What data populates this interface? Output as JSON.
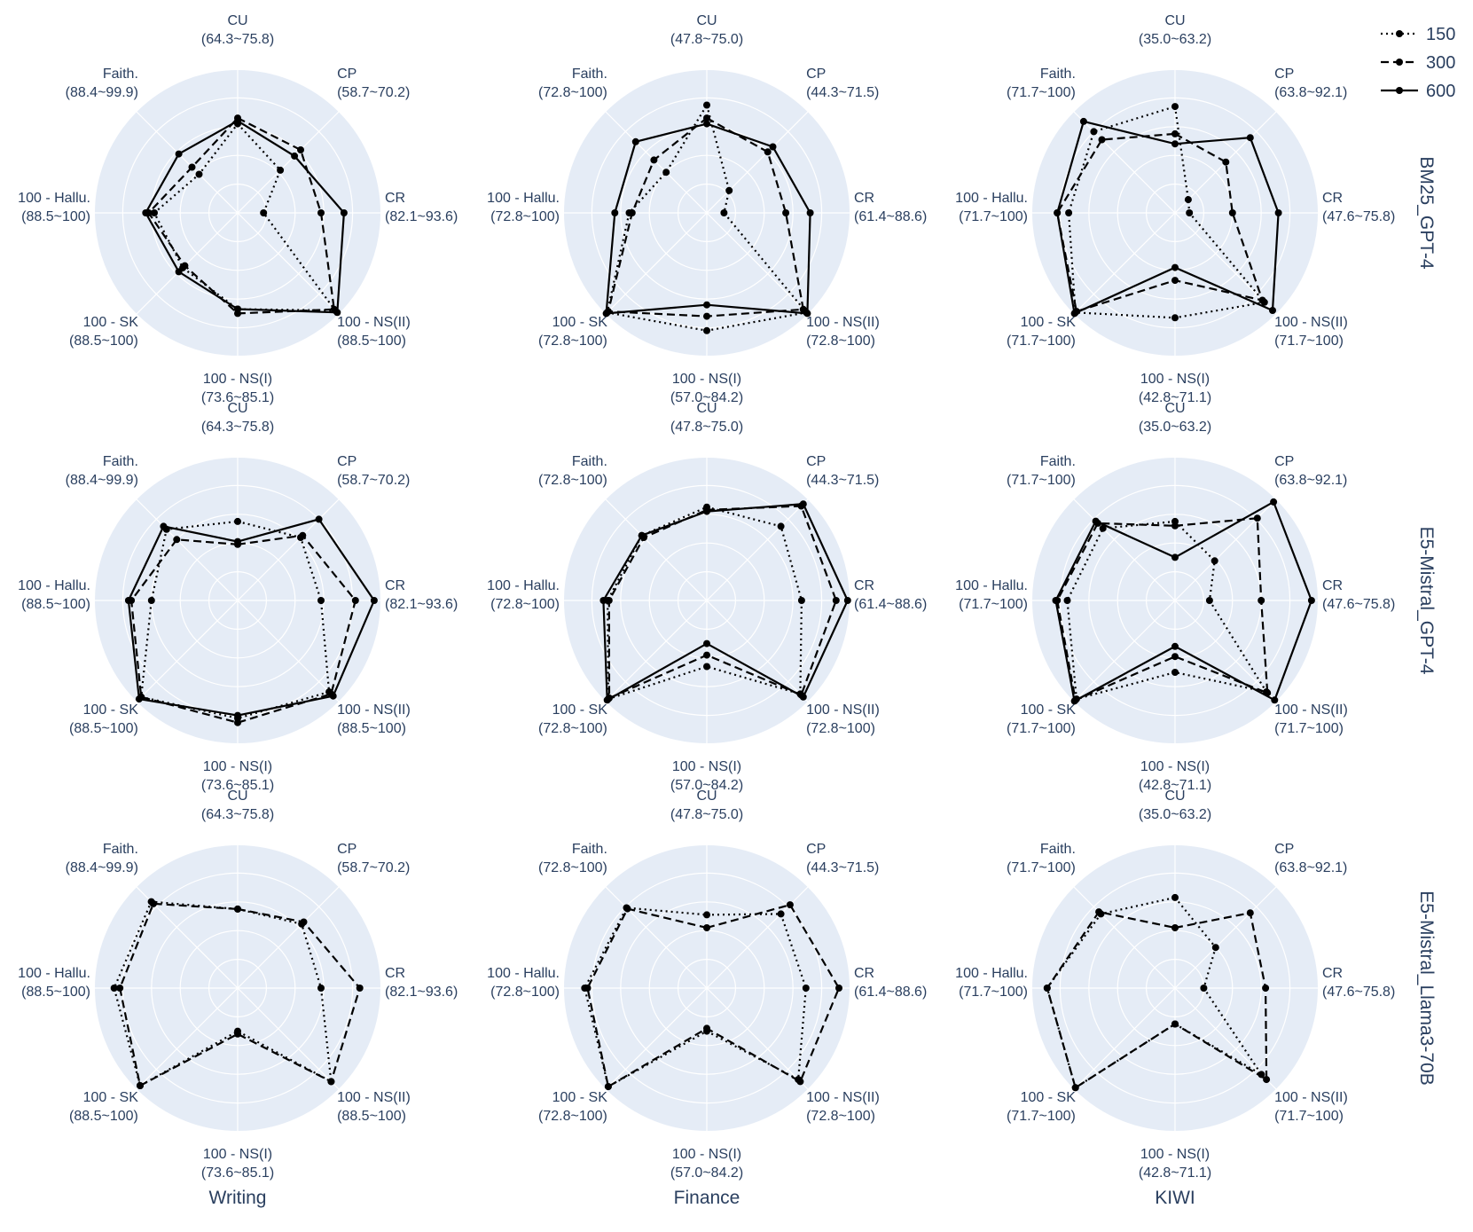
{
  "chart_data": {
    "type": "radar",
    "axes": [
      "CU",
      "CP",
      "CR",
      "100 - NS(II)",
      "100 - NS(I)",
      "100 - SK",
      "100 - Hallu.",
      "Faith."
    ],
    "columns": [
      {
        "title": "Writing",
        "ranges": [
          "(64.3~75.8)",
          "(58.7~70.2)",
          "(82.1~93.6)",
          "(88.5~100)",
          "(73.6~85.1)",
          "(88.5~100)",
          "(88.5~100)",
          "(88.4~99.9)"
        ]
      },
      {
        "title": "Finance",
        "ranges": [
          "(47.8~75.0)",
          "(44.3~71.5)",
          "(61.4~88.6)",
          "(72.8~100)",
          "(57.0~84.2)",
          "(72.8~100)",
          "(72.8~100)",
          "(72.8~100)"
        ]
      },
      {
        "title": "KIWI",
        "ranges": [
          "(35.0~63.2)",
          "(63.8~92.1)",
          "(47.6~75.8)",
          "(71.7~100)",
          "(42.8~71.1)",
          "(71.7~100)",
          "(71.7~100)",
          "(71.7~100)"
        ]
      }
    ],
    "rows": [
      "BM25_GPT-4",
      "E5-Mistral_GPT-4",
      "E5-Mistral_Llama3-70B"
    ],
    "legend": [
      {
        "name": "150",
        "dash": "dot"
      },
      {
        "name": "300",
        "dash": "dash"
      },
      {
        "name": "600",
        "dash": "solid"
      }
    ],
    "radial_range": [
      0,
      1
    ],
    "grid": true,
    "legend_position": "top-right",
    "colors": {
      "polar_bg": "#e5ecf6",
      "grid": "#ffffff",
      "line": "#000000",
      "text": "#2a3f5f"
    },
    "panels": [
      {
        "row": 0,
        "col": 0,
        "series": [
          {
            "name": "150",
            "values": [
              0.62,
              0.42,
              0.18,
              0.96,
              0.67,
              0.54,
              0.58,
              0.38
            ]
          },
          {
            "name": "300",
            "values": [
              0.66,
              0.62,
              0.58,
              0.95,
              0.7,
              0.52,
              0.62,
              0.45
            ]
          },
          {
            "name": "600",
            "values": [
              0.64,
              0.56,
              0.74,
              0.98,
              0.67,
              0.58,
              0.64,
              0.58
            ]
          }
        ]
      },
      {
        "row": 0,
        "col": 1,
        "series": [
          {
            "name": "150",
            "values": [
              0.75,
              0.22,
              0.12,
              0.98,
              0.82,
              0.98,
              0.54,
              0.4
            ]
          },
          {
            "name": "300",
            "values": [
              0.66,
              0.6,
              0.55,
              0.95,
              0.72,
              0.97,
              0.52,
              0.52
            ]
          },
          {
            "name": "600",
            "values": [
              0.62,
              0.65,
              0.72,
              0.99,
              0.64,
              0.99,
              0.64,
              0.7
            ]
          }
        ]
      },
      {
        "row": 0,
        "col": 2,
        "series": [
          {
            "name": "150",
            "values": [
              0.74,
              0.13,
              0.1,
              0.88,
              0.73,
              0.98,
              0.74,
              0.8
            ]
          },
          {
            "name": "300",
            "values": [
              0.55,
              0.5,
              0.4,
              0.86,
              0.47,
              0.97,
              0.82,
              0.72
            ]
          },
          {
            "name": "600",
            "values": [
              0.48,
              0.74,
              0.72,
              0.96,
              0.38,
              0.99,
              0.82,
              0.9
            ]
          }
        ]
      },
      {
        "row": 1,
        "col": 0,
        "series": [
          {
            "name": "150",
            "values": [
              0.55,
              0.62,
              0.58,
              0.9,
              0.82,
              0.95,
              0.6,
              0.7
            ]
          },
          {
            "name": "300",
            "values": [
              0.39,
              0.64,
              0.82,
              0.92,
              0.85,
              0.95,
              0.74,
              0.6
            ]
          },
          {
            "name": "600",
            "values": [
              0.41,
              0.8,
              0.95,
              0.94,
              0.8,
              0.97,
              0.76,
              0.73
            ]
          }
        ]
      },
      {
        "row": 1,
        "col": 1,
        "series": [
          {
            "name": "150",
            "values": [
              0.65,
              0.73,
              0.66,
              0.92,
              0.46,
              0.97,
              0.69,
              0.64
            ]
          },
          {
            "name": "300",
            "values": [
              0.63,
              0.93,
              0.9,
              0.93,
              0.38,
              0.96,
              0.68,
              0.62
            ]
          },
          {
            "name": "600",
            "values": [
              0.62,
              0.95,
              0.98,
              0.95,
              0.3,
              0.98,
              0.72,
              0.64
            ]
          }
        ]
      },
      {
        "row": 1,
        "col": 2,
        "series": [
          {
            "name": "150",
            "values": [
              0.55,
              0.39,
              0.24,
              0.9,
              0.5,
              0.97,
              0.75,
              0.71
            ]
          },
          {
            "name": "300",
            "values": [
              0.52,
              0.81,
              0.6,
              0.91,
              0.39,
              0.98,
              0.82,
              0.76
            ]
          },
          {
            "name": "600",
            "values": [
              0.3,
              0.97,
              0.95,
              0.98,
              0.32,
              0.99,
              0.83,
              0.78
            ]
          }
        ]
      },
      {
        "row": 2,
        "col": 0,
        "series": [
          {
            "name": "150",
            "values": [
              0.55,
              0.63,
              0.58,
              0.92,
              0.3,
              0.96,
              0.86,
              0.85
            ]
          },
          {
            "name": "300",
            "values": [
              0.55,
              0.65,
              0.85,
              0.92,
              0.32,
              0.96,
              0.82,
              0.83
            ]
          }
        ]
      },
      {
        "row": 2,
        "col": 1,
        "series": [
          {
            "name": "150",
            "values": [
              0.51,
              0.73,
              0.69,
              0.9,
              0.3,
              0.97,
              0.85,
              0.79
            ]
          },
          {
            "name": "300",
            "values": [
              0.42,
              0.82,
              0.92,
              0.92,
              0.28,
              0.97,
              0.83,
              0.78
            ]
          }
        ]
      },
      {
        "row": 2,
        "col": 2,
        "series": [
          {
            "name": "150",
            "values": [
              0.63,
              0.4,
              0.2,
              0.85,
              0.25,
              0.98,
              0.89,
              0.73
            ]
          },
          {
            "name": "300",
            "values": [
              0.42,
              0.74,
              0.63,
              0.9,
              0.25,
              0.98,
              0.89,
              0.75
            ]
          }
        ]
      }
    ]
  }
}
